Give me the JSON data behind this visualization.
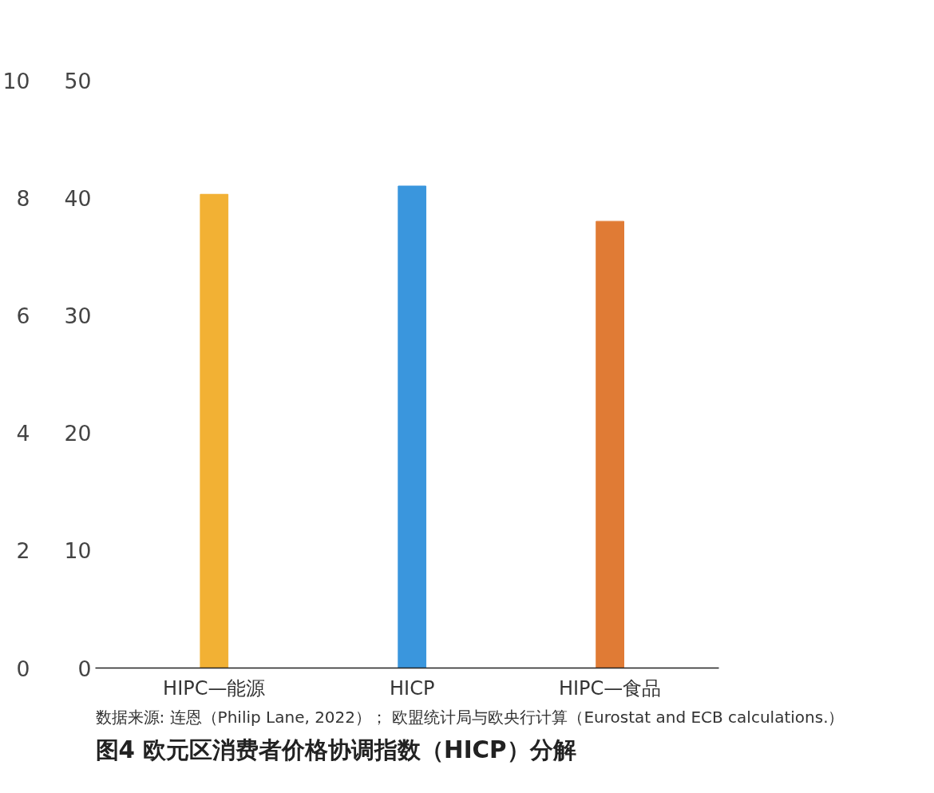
{
  "chart_data": {
    "type": "bar",
    "title": "图4 欧元区消费者价格协调指数（HICP）分解",
    "categories": [
      "HIPC—能源",
      "HICP",
      "HIPC—食品"
    ],
    "series": [
      {
        "color": "#f2b134",
        "values": [
          40.3,
          null,
          null
        ]
      },
      {
        "axis": "y2",
        "colors": [
          null,
          "#3a96dd",
          "#e07b35"
        ],
        "values": [
          null,
          8.2,
          7.6
        ]
      }
    ],
    "ylim": [
      0,
      50
    ],
    "yticks": [
      0,
      10,
      20,
      30,
      40,
      50
    ],
    "y2lim": [
      0,
      10
    ],
    "y2ticks": [
      0,
      2,
      4,
      6,
      8,
      10
    ],
    "grid": false,
    "annotations": [
      "数据来源: 连恩（Philip Lane, 2022）； 欧盟统计局与欧央行计算（Eurostat and  ECB calculations.）"
    ]
  }
}
